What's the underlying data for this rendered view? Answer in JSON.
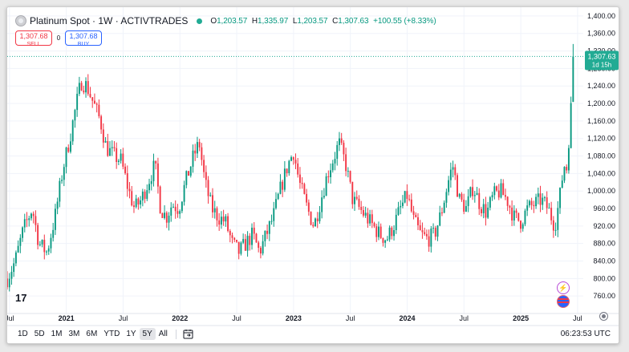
{
  "header": {
    "title": "Platinum Spot · 1W · ACTIVTRADES",
    "symbol_icon": "platinum-symbol-icon",
    "ohlc": {
      "o_label": "O",
      "o": "1,203.57",
      "h_label": "H",
      "h": "1,335.97",
      "l_label": "L",
      "l": "1,203.57",
      "c_label": "C",
      "c": "1,307.63",
      "change": "+100.55 (+8.33%)"
    }
  },
  "trade": {
    "sell_price": "1,307.68",
    "sell_label": "SELL",
    "spread": "0",
    "buy_price": "1,307.68",
    "buy_label": "BUY"
  },
  "price_badge": {
    "price": "1,307.63",
    "countdown": "1d 15h"
  },
  "bottom": {
    "ranges": [
      "1D",
      "5D",
      "1M",
      "3M",
      "6M",
      "YTD",
      "1Y",
      "5Y",
      "All"
    ],
    "active_range": "5Y",
    "clock": "06:23:53 UTC"
  },
  "logo_text": "17",
  "colors": {
    "up": "#089981",
    "down": "#f23645",
    "grid": "#f0f3fa",
    "accent": "#22ab94"
  },
  "chart_data": {
    "type": "candlestick",
    "timeframe": "1W",
    "ylim": [
      720,
      1420
    ],
    "y_ticks": [
      760,
      800,
      840,
      880,
      920,
      960,
      1000,
      1040,
      1080,
      1120,
      1160,
      1200,
      1240,
      1280,
      1320,
      1360,
      1400
    ],
    "y_tick_labels": [
      "760.00",
      "800.00",
      "840.00",
      "880.00",
      "920.00",
      "960.00",
      "1,000.00",
      "1,040.00",
      "1,080.00",
      "1,120.00",
      "1,160.00",
      "1,200.00",
      "1,240.00",
      "1,280.00",
      "1,320.00",
      "1,360.00",
      "1,400.00"
    ],
    "x_ticks": [
      {
        "label": "Jul",
        "t": 2020.5
      },
      {
        "label": "2021",
        "t": 2021.0
      },
      {
        "label": "Jul",
        "t": 2021.5
      },
      {
        "label": "2022",
        "t": 2022.0
      },
      {
        "label": "Jul",
        "t": 2022.5
      },
      {
        "label": "2023",
        "t": 2023.0
      },
      {
        "label": "Jul",
        "t": 2023.5
      },
      {
        "label": "2024",
        "t": 2024.0
      },
      {
        "label": "Jul",
        "t": 2024.5
      },
      {
        "label": "2025",
        "t": 2025.0
      },
      {
        "label": "Jul",
        "t": 2025.5
      }
    ],
    "x_range": [
      2020.48,
      2025.55
    ],
    "last_price": 1307.63,
    "price_path": [
      [
        2020.48,
        800
      ],
      [
        2020.55,
        840
      ],
      [
        2020.62,
        910
      ],
      [
        2020.7,
        960
      ],
      [
        2020.76,
        880
      ],
      [
        2020.83,
        860
      ],
      [
        2020.9,
        940
      ],
      [
        2020.97,
        1050
      ],
      [
        2021.03,
        1120
      ],
      [
        2021.09,
        1200
      ],
      [
        2021.13,
        1250
      ],
      [
        2021.18,
        1240
      ],
      [
        2021.24,
        1200
      ],
      [
        2021.3,
        1160
      ],
      [
        2021.35,
        1100
      ],
      [
        2021.42,
        1080
      ],
      [
        2021.48,
        1070
      ],
      [
        2021.55,
        1000
      ],
      [
        2021.6,
        960
      ],
      [
        2021.66,
        980
      ],
      [
        2021.72,
        1020
      ],
      [
        2021.78,
        1060
      ],
      [
        2021.83,
        960
      ],
      [
        2021.88,
        940
      ],
      [
        2021.93,
        970
      ],
      [
        2021.99,
        960
      ],
      [
        2022.05,
        1020
      ],
      [
        2022.12,
        1080
      ],
      [
        2022.17,
        1110
      ],
      [
        2022.22,
        1020
      ],
      [
        2022.28,
        960
      ],
      [
        2022.34,
        940
      ],
      [
        2022.4,
        930
      ],
      [
        2022.46,
        880
      ],
      [
        2022.52,
        860
      ],
      [
        2022.58,
        880
      ],
      [
        2022.64,
        900
      ],
      [
        2022.7,
        860
      ],
      [
        2022.76,
        900
      ],
      [
        2022.82,
        940
      ],
      [
        2022.88,
        1000
      ],
      [
        2022.95,
        1060
      ],
      [
        2023.0,
        1090
      ],
      [
        2023.05,
        1020
      ],
      [
        2023.12,
        960
      ],
      [
        2023.18,
        920
      ],
      [
        2023.24,
        980
      ],
      [
        2023.3,
        1040
      ],
      [
        2023.36,
        1080
      ],
      [
        2023.4,
        1110
      ],
      [
        2023.46,
        1060
      ],
      [
        2023.52,
        980
      ],
      [
        2023.58,
        960
      ],
      [
        2023.64,
        940
      ],
      [
        2023.7,
        920
      ],
      [
        2023.76,
        900
      ],
      [
        2023.82,
        890
      ],
      [
        2023.88,
        920
      ],
      [
        2023.94,
        960
      ],
      [
        2024.0,
        990
      ],
      [
        2024.06,
        930
      ],
      [
        2024.12,
        900
      ],
      [
        2024.18,
        890
      ],
      [
        2024.24,
        900
      ],
      [
        2024.3,
        950
      ],
      [
        2024.36,
        1020
      ],
      [
        2024.4,
        1060
      ],
      [
        2024.46,
        980
      ],
      [
        2024.52,
        960
      ],
      [
        2024.58,
        1010
      ],
      [
        2024.64,
        970
      ],
      [
        2024.7,
        950
      ],
      [
        2024.76,
        990
      ],
      [
        2024.82,
        1000
      ],
      [
        2024.88,
        980
      ],
      [
        2024.94,
        940
      ],
      [
        2025.0,
        930
      ],
      [
        2025.06,
        960
      ],
      [
        2025.12,
        970
      ],
      [
        2025.18,
        980
      ],
      [
        2025.24,
        960
      ],
      [
        2025.3,
        920
      ],
      [
        2025.34,
        980
      ],
      [
        2025.38,
        1060
      ],
      [
        2025.41,
        1050
      ],
      [
        2025.43,
        1160
      ],
      [
        2025.45,
        1210
      ],
      [
        2025.47,
        1307.63
      ]
    ]
  }
}
